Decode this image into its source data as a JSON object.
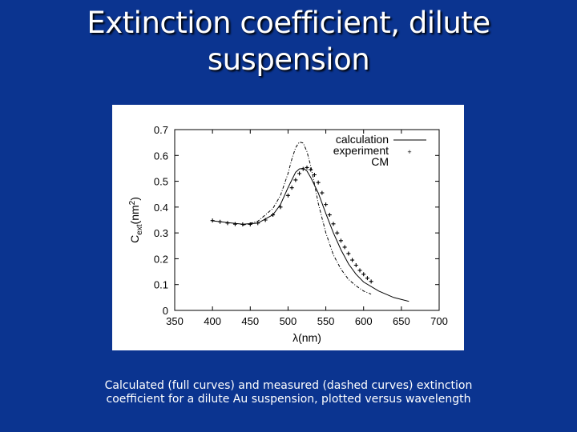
{
  "slide": {
    "title_line1": "Extinction coefficient, dilute",
    "title_line2": "suspension",
    "caption_line1": "Calculated (full curves) and measured (dashed curves) extinction",
    "caption_line2": "coefficient for a dilute Au suspension, plotted versus wavelength"
  },
  "colors": {
    "background": "#0b3490",
    "plot_background": "#ffffff",
    "text": "#ffffff",
    "ink": "#000000"
  },
  "chart_data": {
    "type": "line",
    "xlabel": "λ(nm)",
    "ylabel": "Cext(nm2)",
    "xlim": [
      350,
      700
    ],
    "ylim": [
      0,
      0.7
    ],
    "xticks": [
      "350",
      "400",
      "450",
      "500",
      "550",
      "600",
      "650",
      "700"
    ],
    "yticks": [
      "0",
      "0.1",
      "0.2",
      "0.3",
      "0.4",
      "0.5",
      "0.6",
      "0.7"
    ],
    "grid": false,
    "legend_position": "top-right",
    "series": [
      {
        "name": "calculation",
        "style": "solid",
        "x": [
          400,
          420,
          440,
          460,
          480,
          490,
          500,
          510,
          515,
          520,
          525,
          530,
          540,
          550,
          560,
          570,
          580,
          590,
          600,
          620,
          640,
          660
        ],
        "y": [
          0.347,
          0.34,
          0.334,
          0.338,
          0.37,
          0.41,
          0.475,
          0.535,
          0.548,
          0.55,
          0.54,
          0.515,
          0.455,
          0.375,
          0.3,
          0.235,
          0.18,
          0.14,
          0.11,
          0.075,
          0.05,
          0.035
        ]
      },
      {
        "name": "experiment",
        "style": "points",
        "x": [
          400,
          410,
          420,
          430,
          440,
          450,
          460,
          470,
          480,
          490,
          500,
          505,
          510,
          515,
          520,
          525,
          530,
          535,
          540,
          545,
          550,
          555,
          560,
          565,
          570,
          575,
          580,
          585,
          590,
          595,
          600,
          605,
          610
        ],
        "y": [
          0.348,
          0.343,
          0.338,
          0.334,
          0.333,
          0.333,
          0.338,
          0.35,
          0.37,
          0.4,
          0.445,
          0.475,
          0.505,
          0.53,
          0.548,
          0.553,
          0.545,
          0.525,
          0.495,
          0.455,
          0.41,
          0.37,
          0.335,
          0.3,
          0.27,
          0.245,
          0.22,
          0.195,
          0.175,
          0.155,
          0.14,
          0.125,
          0.112
        ]
      },
      {
        "name": "CM",
        "style": "dashed",
        "x": [
          440,
          460,
          480,
          490,
          500,
          505,
          510,
          515,
          520,
          525,
          530,
          535,
          540,
          550,
          560,
          570,
          580,
          590,
          600,
          610
        ],
        "y": [
          0.33,
          0.345,
          0.395,
          0.445,
          0.53,
          0.585,
          0.63,
          0.652,
          0.648,
          0.615,
          0.56,
          0.49,
          0.415,
          0.3,
          0.215,
          0.16,
          0.12,
          0.095,
          0.075,
          0.063
        ]
      }
    ]
  }
}
